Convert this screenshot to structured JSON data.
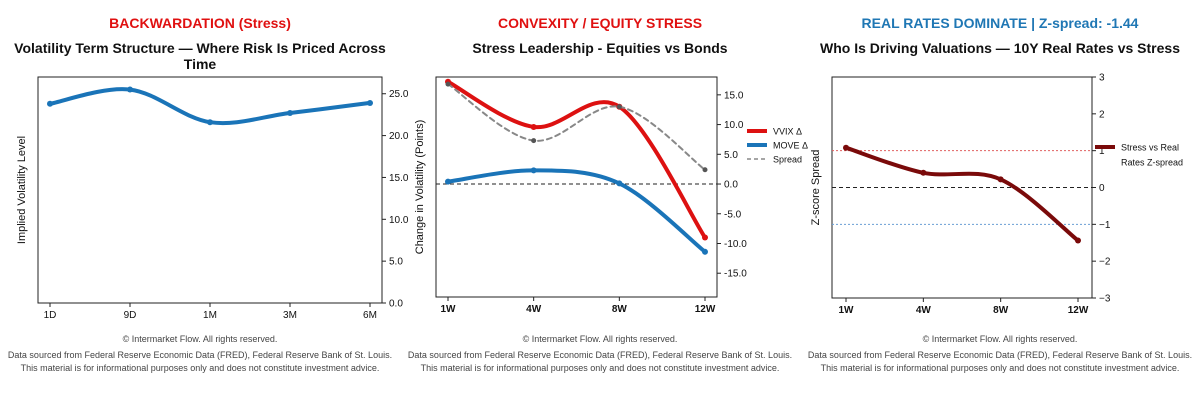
{
  "colors": {
    "red": "#dd1111",
    "blue": "#1a74b8",
    "darkred": "#7a0a0a",
    "gray": "#888888",
    "subtitle_red": "#e01010",
    "subtitle_blue": "#1f77b4"
  },
  "footer": {
    "copyright": "© Intermarket Flow. All rights reserved.",
    "source": "Data sourced from Federal Reserve Economic Data (FRED), Federal Reserve Bank of St. Louis.",
    "disclaimer": "This material is for informational purposes only and does not constitute investment advice."
  },
  "panels": [
    {
      "subtitle": "BACKWARDATION (Stress)",
      "subtitle_color": "#e01010",
      "title": "Volatility Term Structure —  Where Risk Is Priced Across Time"
    },
    {
      "subtitle": "CONVEXITY / EQUITY STRESS",
      "subtitle_color": "#e01010",
      "title": "Stress Leadership - Equities vs Bonds"
    },
    {
      "subtitle": "REAL RATES DOMINATE | Z-spread: -1.44",
      "subtitle_color": "#1f77b4",
      "title": "Who Is Driving Valuations — 10Y Real Rates vs Stress"
    }
  ],
  "chart_data": [
    {
      "type": "line",
      "title": "Volatility Term Structure —  Where Risk Is Priced Across Time",
      "ylabel": "Implied Volatility Level",
      "categories": [
        "1D",
        "9D",
        "1M",
        "3M",
        "6M"
      ],
      "ylim": [
        0,
        27
      ],
      "yticks": [
        0.0,
        5.0,
        10.0,
        15.0,
        20.0,
        25.0
      ],
      "ytick_labels": [
        "0.0",
        "5.0",
        "10.0",
        "15.0",
        "20.0",
        "25.0"
      ],
      "y_axis_side": "right",
      "grid": false,
      "series": [
        {
          "values": [
            23.8,
            25.5,
            21.6,
            22.7,
            23.9
          ],
          "color": "#1a74b8",
          "width": 4,
          "smooth": true
        }
      ]
    },
    {
      "type": "line",
      "title": "Stress Leadership - Equities vs Bonds",
      "ylabel": "Change in Volatility (Points)",
      "categories": [
        "1W",
        "4W",
        "8W",
        "12W"
      ],
      "ylim": [
        -19,
        18
      ],
      "yticks": [
        -15,
        -10,
        -5,
        0,
        5,
        10,
        15
      ],
      "ytick_labels": [
        "-15.0",
        "-10.0",
        "-5.0",
        "0.0",
        "5.0",
        "10.0",
        "15.0"
      ],
      "y_axis_side": "right",
      "zero_line": true,
      "legend": "right",
      "series": [
        {
          "name": "VVIX Δ",
          "values": [
            17.2,
            9.6,
            13.0,
            -9.0
          ],
          "color": "#dd1111",
          "width": 4,
          "smooth": true
        },
        {
          "name": "MOVE Δ",
          "values": [
            0.4,
            2.3,
            0.1,
            -11.4
          ],
          "color": "#1a74b8",
          "width": 4,
          "smooth": true
        },
        {
          "name": "Spread",
          "values": [
            16.8,
            7.3,
            13.0,
            2.4
          ],
          "color": "#888888",
          "width": 2,
          "dashed": true,
          "smooth": true
        }
      ]
    },
    {
      "type": "line",
      "title": "Who Is Driving Valuations — 10Y Real Rates vs Stress",
      "ylabel": "Z-score Spread",
      "categories": [
        "1W",
        "4W",
        "8W",
        "12W"
      ],
      "ylim": [
        -3,
        3
      ],
      "yticks": [
        -3,
        -2,
        -1,
        0,
        1,
        2,
        3
      ],
      "ytick_labels": [
        "−3",
        "−2",
        "−1",
        "0",
        "1",
        "2",
        "3"
      ],
      "y_axis_side": "right",
      "zero_line": true,
      "ref_lines": [
        {
          "value": 1,
          "color": "#e06060"
        },
        {
          "value": -1,
          "color": "#6a9fd4"
        }
      ],
      "legend": "right",
      "series": [
        {
          "name": "Stress vs Real Rates Z-spread",
          "values": [
            1.08,
            0.4,
            0.22,
            -1.44
          ],
          "color": "#7a0a0a",
          "width": 4,
          "smooth": true
        }
      ]
    }
  ]
}
